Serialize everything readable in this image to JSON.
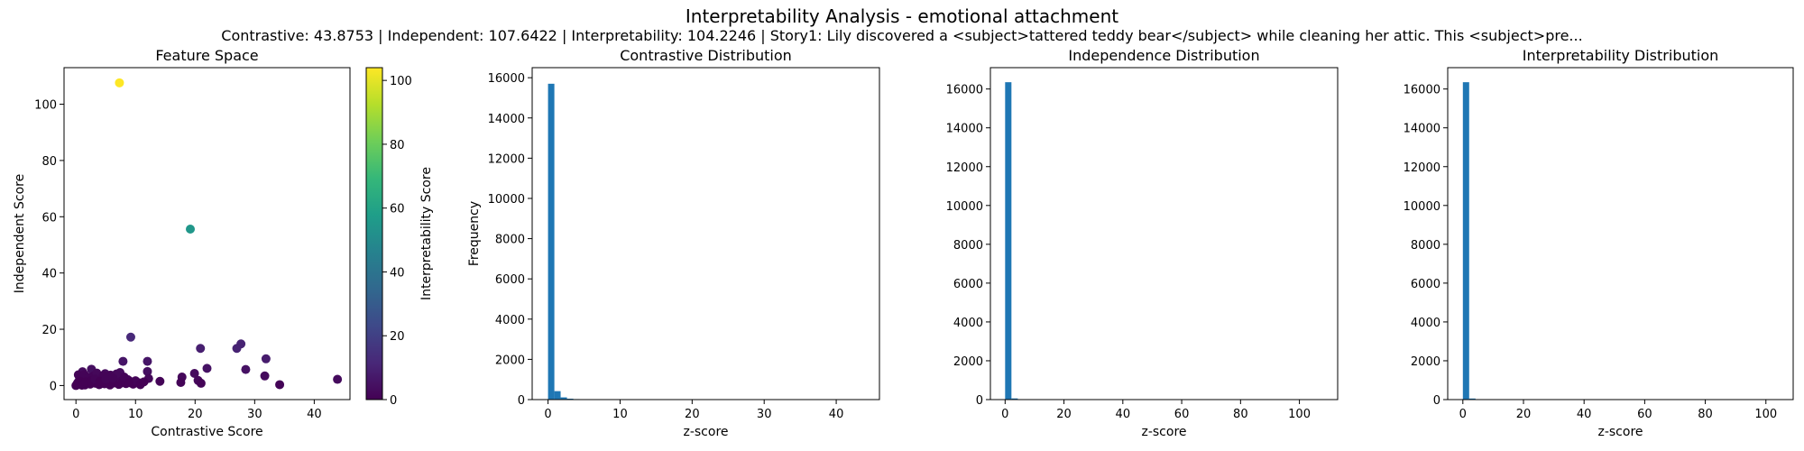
{
  "figure": {
    "title": "Interpretability Analysis - emotional attachment",
    "subtitle": "Contrastive: 43.8753 | Independent: 107.6422 | Interpretability: 104.2246 | Story1: Lily discovered a <subject>tattered teddy bear</subject> while cleaning her attic. This <subject>pre..."
  },
  "colors": {
    "bar": "#1f77b4",
    "viridis": [
      "#440154",
      "#482878",
      "#3e4989",
      "#31688e",
      "#26828e",
      "#1f9e89",
      "#35b779",
      "#6ece58",
      "#b5de2b",
      "#fde725"
    ]
  },
  "chart_data": [
    {
      "type": "scatter",
      "title": "Feature Space",
      "xlabel": "Contrastive Score",
      "ylabel": "Independent Score",
      "xlim": [
        -2,
        46
      ],
      "ylim": [
        -5,
        113
      ],
      "xticks": [
        0,
        10,
        20,
        30,
        40
      ],
      "yticks": [
        0,
        20,
        40,
        60,
        80,
        100
      ],
      "colorbar": {
        "label": "Interpretability Score",
        "range": [
          0,
          104
        ],
        "ticks": [
          0,
          20,
          40,
          60,
          80,
          100
        ]
      },
      "points": [
        {
          "x": 7.3,
          "y": 107.6,
          "c": 104.2
        },
        {
          "x": 19.2,
          "y": 55.6,
          "c": 55
        },
        {
          "x": 9.2,
          "y": 17.2,
          "c": 12
        },
        {
          "x": 27.7,
          "y": 14.8,
          "c": 10
        },
        {
          "x": 27.0,
          "y": 13.2,
          "c": 10
        },
        {
          "x": 20.9,
          "y": 13.2,
          "c": 9
        },
        {
          "x": 31.9,
          "y": 9.5,
          "c": 8
        },
        {
          "x": 12.0,
          "y": 8.6,
          "c": 6
        },
        {
          "x": 7.9,
          "y": 8.6,
          "c": 6
        },
        {
          "x": 28.5,
          "y": 5.7,
          "c": 5
        },
        {
          "x": 22.0,
          "y": 6.1,
          "c": 5
        },
        {
          "x": 2.6,
          "y": 5.8,
          "c": 4
        },
        {
          "x": 1.1,
          "y": 4.9,
          "c": 3
        },
        {
          "x": 12.0,
          "y": 5.0,
          "c": 4
        },
        {
          "x": 7.4,
          "y": 4.6,
          "c": 3
        },
        {
          "x": 4.9,
          "y": 4.2,
          "c": 3
        },
        {
          "x": 31.7,
          "y": 3.4,
          "c": 3
        },
        {
          "x": 19.9,
          "y": 4.3,
          "c": 3
        },
        {
          "x": 12.2,
          "y": 2.5,
          "c": 2
        },
        {
          "x": 17.8,
          "y": 3.0,
          "c": 2
        },
        {
          "x": 20.5,
          "y": 1.8,
          "c": 2
        },
        {
          "x": 43.9,
          "y": 2.2,
          "c": 3
        },
        {
          "x": 14.1,
          "y": 1.5,
          "c": 1
        },
        {
          "x": 17.6,
          "y": 1.1,
          "c": 1
        },
        {
          "x": 21.0,
          "y": 0.8,
          "c": 1
        },
        {
          "x": 34.2,
          "y": 0.3,
          "c": 1
        },
        {
          "x": 10.5,
          "y": 1.0,
          "c": 1
        },
        {
          "x": 9.0,
          "y": 1.6,
          "c": 1
        },
        {
          "x": 0.0,
          "y": 0.0,
          "c": 0
        },
        {
          "x": 0.3,
          "y": 1.0,
          "c": 0
        },
        {
          "x": 0.6,
          "y": 2.2,
          "c": 1
        },
        {
          "x": 0.9,
          "y": 0.4,
          "c": 0
        },
        {
          "x": 1.2,
          "y": 1.8,
          "c": 1
        },
        {
          "x": 1.5,
          "y": 0.2,
          "c": 0
        },
        {
          "x": 1.8,
          "y": 2.8,
          "c": 1
        },
        {
          "x": 2.1,
          "y": 1.1,
          "c": 0
        },
        {
          "x": 2.4,
          "y": 0.5,
          "c": 0
        },
        {
          "x": 2.7,
          "y": 2.4,
          "c": 1
        },
        {
          "x": 3.0,
          "y": 3.5,
          "c": 1
        },
        {
          "x": 3.3,
          "y": 0.8,
          "c": 0
        },
        {
          "x": 3.6,
          "y": 1.9,
          "c": 1
        },
        {
          "x": 3.9,
          "y": 0.3,
          "c": 0
        },
        {
          "x": 4.2,
          "y": 2.6,
          "c": 1
        },
        {
          "x": 4.5,
          "y": 1.2,
          "c": 0
        },
        {
          "x": 4.8,
          "y": 0.6,
          "c": 0
        },
        {
          "x": 5.1,
          "y": 3.1,
          "c": 1
        },
        {
          "x": 5.4,
          "y": 1.5,
          "c": 0
        },
        {
          "x": 5.7,
          "y": 0.2,
          "c": 0
        },
        {
          "x": 6.0,
          "y": 2.0,
          "c": 1
        },
        {
          "x": 6.3,
          "y": 0.9,
          "c": 0
        },
        {
          "x": 6.6,
          "y": 3.3,
          "c": 1
        },
        {
          "x": 6.9,
          "y": 1.4,
          "c": 0
        },
        {
          "x": 7.2,
          "y": 0.4,
          "c": 0
        },
        {
          "x": 7.5,
          "y": 2.5,
          "c": 1
        },
        {
          "x": 7.8,
          "y": 1.0,
          "c": 0
        },
        {
          "x": 8.1,
          "y": 3.0,
          "c": 1
        },
        {
          "x": 8.4,
          "y": 0.7,
          "c": 0
        },
        {
          "x": 8.7,
          "y": 2.1,
          "c": 1
        },
        {
          "x": 9.6,
          "y": 0.5,
          "c": 0
        },
        {
          "x": 10.0,
          "y": 1.7,
          "c": 1
        },
        {
          "x": 10.8,
          "y": 0.3,
          "c": 0
        },
        {
          "x": 11.4,
          "y": 1.3,
          "c": 0
        },
        {
          "x": 0.4,
          "y": 3.8,
          "c": 1
        },
        {
          "x": 1.4,
          "y": 3.9,
          "c": 1
        },
        {
          "x": 2.2,
          "y": 2.9,
          "c": 1
        },
        {
          "x": 3.5,
          "y": 4.4,
          "c": 2
        },
        {
          "x": 4.6,
          "y": 3.6,
          "c": 1
        },
        {
          "x": 5.8,
          "y": 3.7,
          "c": 1
        },
        {
          "x": 6.8,
          "y": 4.1,
          "c": 2
        },
        {
          "x": 0.2,
          "y": 0.6,
          "c": 0
        },
        {
          "x": 0.7,
          "y": 1.5,
          "c": 0
        },
        {
          "x": 1.0,
          "y": 0.1,
          "c": 0
        },
        {
          "x": 1.6,
          "y": 1.3,
          "c": 0
        },
        {
          "x": 2.5,
          "y": 1.6,
          "c": 0
        },
        {
          "x": 3.2,
          "y": 2.3,
          "c": 1
        },
        {
          "x": 4.0,
          "y": 1.5,
          "c": 0
        },
        {
          "x": 5.0,
          "y": 2.3,
          "c": 1
        },
        {
          "x": 6.2,
          "y": 2.7,
          "c": 1
        },
        {
          "x": 8.9,
          "y": 1.0,
          "c": 0
        }
      ]
    },
    {
      "type": "bar",
      "title": "Contrastive Distribution",
      "xlabel": "z-score",
      "ylabel": "Frequency",
      "xlim": [
        -2.2,
        46
      ],
      "ylim": [
        0,
        16500
      ],
      "xticks": [
        0,
        10,
        20,
        30,
        40
      ],
      "yticks": [
        0,
        2000,
        4000,
        6000,
        8000,
        10000,
        12000,
        14000,
        16000
      ],
      "bins": [
        {
          "x0": 0.0,
          "x1": 0.88,
          "value": 15700
        },
        {
          "x0": 0.88,
          "x1": 1.75,
          "value": 420
        },
        {
          "x0": 1.75,
          "x1": 2.63,
          "value": 110
        },
        {
          "x0": 2.63,
          "x1": 3.51,
          "value": 45
        },
        {
          "x0": 3.51,
          "x1": 4.39,
          "value": 25
        },
        {
          "x0": 4.39,
          "x1": 5.26,
          "value": 15
        },
        {
          "x0": 5.26,
          "x1": 6.14,
          "value": 8
        }
      ]
    },
    {
      "type": "bar",
      "title": "Independence Distribution",
      "xlabel": "z-score",
      "ylabel": "",
      "xlim": [
        -5,
        113
      ],
      "ylim": [
        0,
        17100
      ],
      "xticks": [
        0,
        20,
        40,
        60,
        80,
        100
      ],
      "yticks": [
        0,
        2000,
        4000,
        6000,
        8000,
        10000,
        12000,
        14000,
        16000
      ],
      "bins": [
        {
          "x0": 0.0,
          "x1": 2.15,
          "value": 16350
        },
        {
          "x0": 2.15,
          "x1": 4.3,
          "value": 60
        },
        {
          "x0": 4.3,
          "x1": 6.45,
          "value": 12
        }
      ]
    },
    {
      "type": "bar",
      "title": "Interpretability Distribution",
      "xlabel": "z-score",
      "ylabel": "",
      "xlim": [
        -5,
        109
      ],
      "ylim": [
        0,
        17100
      ],
      "xticks": [
        0,
        20,
        40,
        60,
        80,
        100
      ],
      "yticks": [
        0,
        2000,
        4000,
        6000,
        8000,
        10000,
        12000,
        14000,
        16000
      ],
      "bins": [
        {
          "x0": 0.0,
          "x1": 2.08,
          "value": 16350
        },
        {
          "x0": 2.08,
          "x1": 4.17,
          "value": 55
        },
        {
          "x0": 4.17,
          "x1": 6.25,
          "value": 10
        }
      ]
    }
  ]
}
